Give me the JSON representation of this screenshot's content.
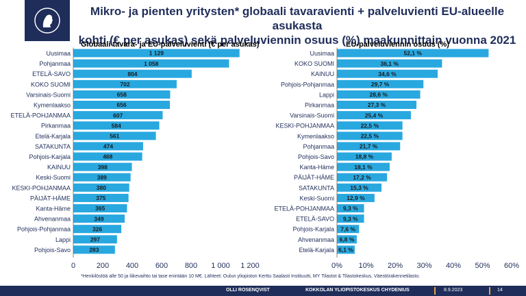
{
  "header": {
    "title_line1": "Mikro- ja pienten yritysten* globaali tavaravienti + palveluvienti EU-alueelle asukasta",
    "title_line2": "kohti (€ per asukas) sekä palveluviennin osuus (%) maakunnittain vuonna 2021"
  },
  "chart_data": [
    {
      "type": "bar",
      "orientation": "horizontal",
      "title": "Globaali tavara- ja EU-palveluvienti (€ per asukas)",
      "categories": [
        "Uusimaa",
        "Pohjanmaa",
        "ETELÄ-SAVO",
        "KOKO SUOMI",
        "Varsinais-Suomi",
        "Kymenlaakso",
        "ETELÄ-POHJANMAA",
        "Pirkanmaa",
        "Etelä-Karjala",
        "SATAKUNTA",
        "Pohjois-Karjala",
        "KAINUU",
        "Keski-Suomi",
        "KESKI-POHJANMAA",
        "PÄIJÄT-HÄME",
        "Kanta-Häme",
        "Ahvenanmaa",
        "Pohjois-Pohjanmaa",
        "Lappi",
        "Pohjois-Savo"
      ],
      "values": [
        1129,
        1058,
        804,
        702,
        658,
        656,
        607,
        584,
        561,
        474,
        468,
        398,
        389,
        380,
        375,
        365,
        349,
        326,
        297,
        283
      ],
      "value_labels": [
        "1 129",
        "1 058",
        "804",
        "702",
        "658",
        "656",
        "607",
        "584",
        "561",
        "474",
        "468",
        "398",
        "389",
        "380",
        "375",
        "365",
        "349",
        "326",
        "297",
        "283"
      ],
      "xlim": [
        0,
        1200
      ],
      "xticks": [
        "0",
        "200",
        "400",
        "600",
        "800",
        "1 000",
        "1 200"
      ],
      "grid": false,
      "bar_color": "#29a8e0"
    },
    {
      "type": "bar",
      "orientation": "horizontal",
      "title": "EU-palveluviennin osuus (%)",
      "categories": [
        "Uusimaa",
        "KOKO SUOMI",
        "KAINUU",
        "Pohjois-Pohjanmaa",
        "Lappi",
        "Pirkanmaa",
        "Varsinais-Suomi",
        "KESKI-POHJANMAA",
        "Kymenlaakso",
        "Pohjanmaa",
        "Pohjois-Savo",
        "Kanta-Häme",
        "PÄIJÄT-HÄME",
        "SATAKUNTA",
        "Keski-Suomi",
        "ETELÄ-POHJANMAA",
        "ETELÄ-SAVO",
        "Pohjois-Karjala",
        "Ahvenanmaa",
        "Etelä-Karjala"
      ],
      "values": [
        52.1,
        36.1,
        34.6,
        29.7,
        28.6,
        27.3,
        25.4,
        22.5,
        22.5,
        21.7,
        18.8,
        18.1,
        17.2,
        15.3,
        12.9,
        9.3,
        9.3,
        7.6,
        6.8,
        6.1
      ],
      "value_labels": [
        "52,1 %",
        "36,1 %",
        "34,6 %",
        "29,7 %",
        "28,6 %",
        "27,3 %",
        "25,4 %",
        "22,5 %",
        "22,5 %",
        "21,7 %",
        "18,8 %",
        "18,1 %",
        "17,2 %",
        "15,3 %",
        "12,9 %",
        "9,3 %",
        "9,3 %",
        "7,6 %",
        "6,8 %",
        "6,1 %"
      ],
      "xlim": [
        0,
        60
      ],
      "xticks": [
        "0%",
        "10%",
        "20%",
        "30%",
        "40%",
        "50%",
        "60%"
      ],
      "grid": false,
      "bar_color": "#29a8e0"
    }
  ],
  "footnote": "*Henkilöstöä alle 50 ja liikevaihto tai tase enintään 10 M€. Lähteet: Oulun yliopiston Kerttu Saalasti Instituutti, MY Tilastot & Tilastokeskus, Väestörakennetilasto.",
  "footer": {
    "author": "OLLI ROSENQVIST",
    "organization": "KOKKOLAN YLIOPISTOKESKUS CHYDENIUS",
    "date": "8.9.2023",
    "page": "14"
  },
  "colors": {
    "navy": "#1f2d5a",
    "bar": "#29a8e0",
    "accent": "#e8a33d"
  },
  "icons": [
    "chydenius-portrait-logo"
  ]
}
